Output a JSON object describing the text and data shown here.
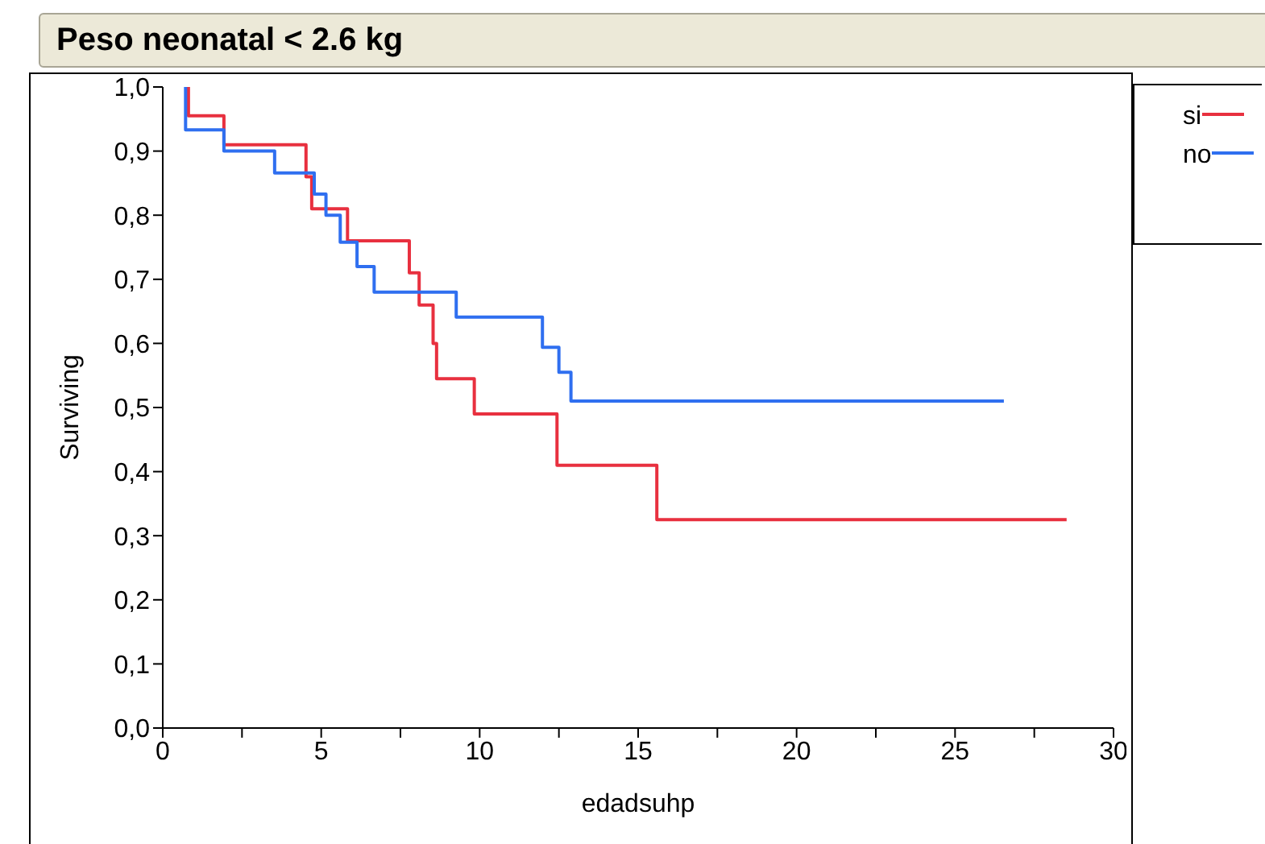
{
  "chart_data": {
    "type": "step",
    "title": "Peso neonatal < 2.6 kg",
    "xlabel": "edadsuhp",
    "ylabel": "Surviving",
    "series": [
      {
        "name": "si",
        "color": "#e8303f",
        "x": [
          0.81,
          0.81,
          1.93,
          4.52,
          4.7,
          5.83,
          7.78,
          8.09,
          8.53,
          8.64,
          9.83,
          12.44,
          15.59,
          28.52
        ],
        "values": [
          1.0,
          0.955,
          0.91,
          0.86,
          0.81,
          0.76,
          0.71,
          0.66,
          0.6,
          0.545,
          0.49,
          0.41,
          0.325,
          0.325
        ]
      },
      {
        "name": "no",
        "color": "#2f6ff0",
        "x": [
          0.72,
          0.72,
          1.93,
          3.53,
          4.78,
          5.15,
          5.6,
          6.13,
          6.67,
          9.26,
          11.98,
          12.5,
          12.88,
          26.54
        ],
        "values": [
          1.0,
          0.933,
          0.9,
          0.866,
          0.833,
          0.8,
          0.758,
          0.72,
          0.68,
          0.641,
          0.594,
          0.555,
          0.51,
          0.51
        ]
      }
    ],
    "xlim": [
      0,
      30
    ],
    "ylim": [
      0,
      1
    ],
    "xticks": [
      0,
      {
        "value": 2.5,
        "label": null
      },
      5,
      {
        "value": 7.5,
        "label": null
      },
      10,
      {
        "value": 12.5,
        "label": null
      },
      15,
      {
        "value": 17.5,
        "label": null
      },
      20,
      {
        "value": 22.5,
        "label": null
      },
      25,
      {
        "value": 27.5,
        "label": null
      },
      30
    ],
    "yticks": [
      {
        "value": 0,
        "label": "0,0"
      },
      {
        "value": 0.1,
        "label": "0,1"
      },
      {
        "value": 0.2,
        "label": "0,2"
      },
      {
        "value": 0.3,
        "label": "0,3"
      },
      {
        "value": 0.4,
        "label": "0,4"
      },
      {
        "value": 0.5,
        "label": "0,5"
      },
      {
        "value": 0.6,
        "label": "0,6"
      },
      {
        "value": 0.7,
        "label": "0,7"
      },
      {
        "value": 0.8,
        "label": "0,8"
      },
      {
        "value": 0.9,
        "label": "0,9"
      },
      {
        "value": 1,
        "label": "1,0"
      }
    ],
    "grid": false,
    "legend": "right",
    "marker": "none",
    "line_style": "solid"
  }
}
